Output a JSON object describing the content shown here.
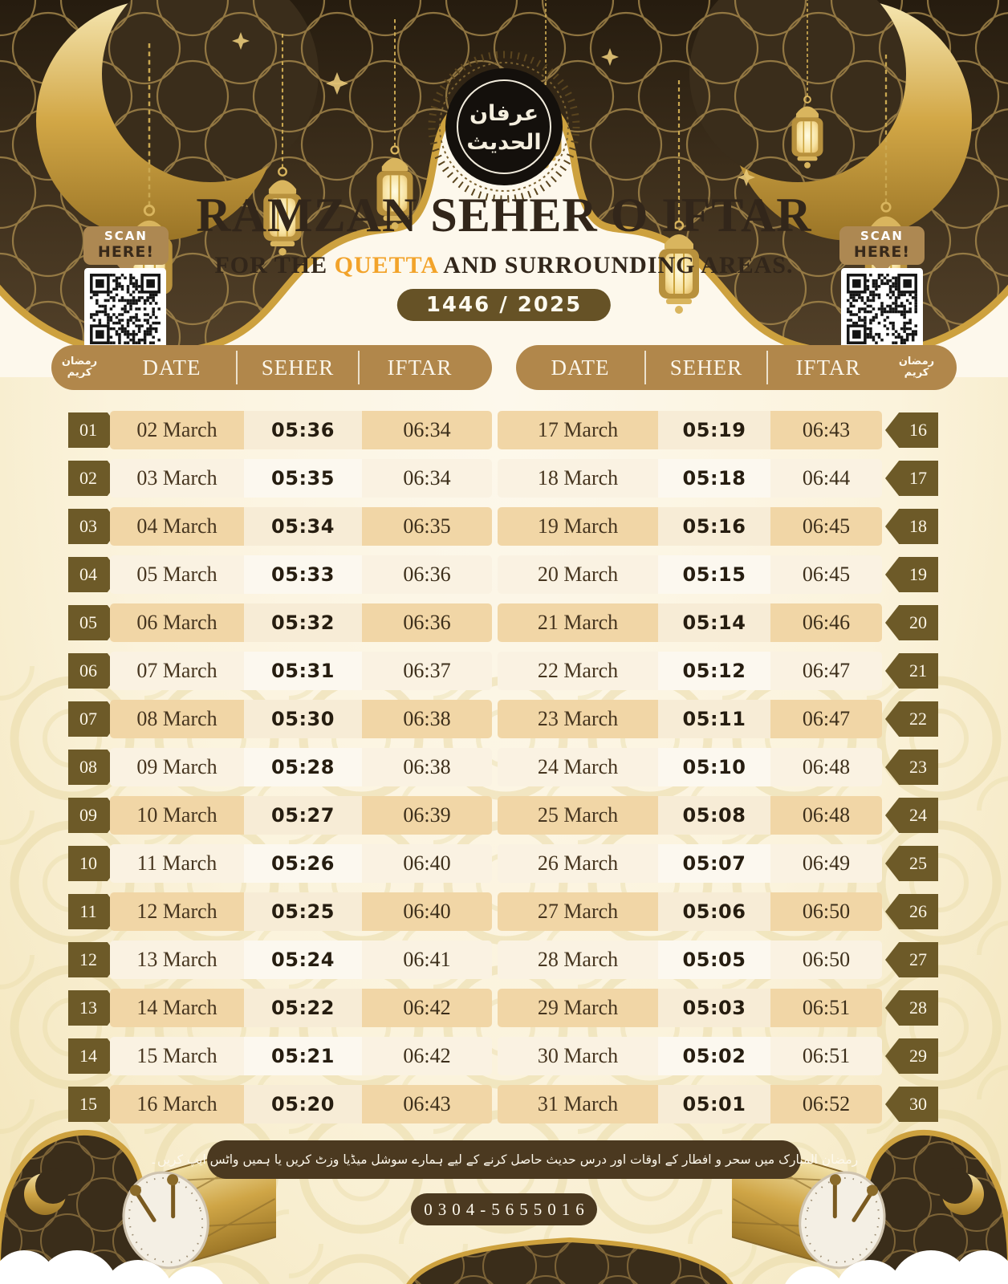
{
  "header": {
    "logo_line1": "عرفان",
    "logo_line2": "الحديث",
    "title": "RAMZAN SEHER O IFTAR",
    "subtitle_prefix": "FOR THE ",
    "subtitle_highlight": "QUETTA",
    "subtitle_suffix": " AND SURROUNDING AREAS.",
    "year_badge": "1446 / 2025",
    "scan": {
      "word1": "SCAN",
      "word2": "HERE!"
    }
  },
  "table_headers": {
    "date": "DATE",
    "seher": "SEHER",
    "iftar": "IFTAR",
    "roundel_line1": "رمضان",
    "roundel_line2": "كريم"
  },
  "tables": {
    "left": {
      "rows": [
        {
          "no": "01",
          "date": "02 March",
          "seher": "05:36",
          "iftar": "06:34"
        },
        {
          "no": "02",
          "date": "03 March",
          "seher": "05:35",
          "iftar": "06:34"
        },
        {
          "no": "03",
          "date": "04 March",
          "seher": "05:34",
          "iftar": "06:35"
        },
        {
          "no": "04",
          "date": "05 March",
          "seher": "05:33",
          "iftar": "06:36"
        },
        {
          "no": "05",
          "date": "06 March",
          "seher": "05:32",
          "iftar": "06:36"
        },
        {
          "no": "06",
          "date": "07 March",
          "seher": "05:31",
          "iftar": "06:37"
        },
        {
          "no": "07",
          "date": "08 March",
          "seher": "05:30",
          "iftar": "06:38"
        },
        {
          "no": "08",
          "date": "09 March",
          "seher": "05:28",
          "iftar": "06:38"
        },
        {
          "no": "09",
          "date": "10 March",
          "seher": "05:27",
          "iftar": "06:39"
        },
        {
          "no": "10",
          "date": "11 March",
          "seher": "05:26",
          "iftar": "06:40"
        },
        {
          "no": "11",
          "date": "12 March",
          "seher": "05:25",
          "iftar": "06:40"
        },
        {
          "no": "12",
          "date": "13 March",
          "seher": "05:24",
          "iftar": "06:41"
        },
        {
          "no": "13",
          "date": "14 March",
          "seher": "05:22",
          "iftar": "06:42"
        },
        {
          "no": "14",
          "date": "15 March",
          "seher": "05:21",
          "iftar": "06:42"
        },
        {
          "no": "15",
          "date": "16 March",
          "seher": "05:20",
          "iftar": "06:43"
        }
      ]
    },
    "right": {
      "rows": [
        {
          "no": "16",
          "date": "17 March",
          "seher": "05:19",
          "iftar": "06:43"
        },
        {
          "no": "17",
          "date": "18 March",
          "seher": "05:18",
          "iftar": "06:44"
        },
        {
          "no": "18",
          "date": "19 March",
          "seher": "05:16",
          "iftar": "06:45"
        },
        {
          "no": "19",
          "date": "20 March",
          "seher": "05:15",
          "iftar": "06:45"
        },
        {
          "no": "20",
          "date": "21 March",
          "seher": "05:14",
          "iftar": "06:46"
        },
        {
          "no": "21",
          "date": "22 March",
          "seher": "05:12",
          "iftar": "06:47"
        },
        {
          "no": "22",
          "date": "23 March",
          "seher": "05:11",
          "iftar": "06:47"
        },
        {
          "no": "23",
          "date": "24 March",
          "seher": "05:10",
          "iftar": "06:48"
        },
        {
          "no": "24",
          "date": "25 March",
          "seher": "05:08",
          "iftar": "06:48"
        },
        {
          "no": "25",
          "date": "26 March",
          "seher": "05:07",
          "iftar": "06:49"
        },
        {
          "no": "26",
          "date": "27 March",
          "seher": "05:06",
          "iftar": "06:50"
        },
        {
          "no": "27",
          "date": "28 March",
          "seher": "05:05",
          "iftar": "06:50"
        },
        {
          "no": "28",
          "date": "29 March",
          "seher": "05:03",
          "iftar": "06:51"
        },
        {
          "no": "29",
          "date": "30 March",
          "seher": "05:02",
          "iftar": "06:51"
        },
        {
          "no": "30",
          "date": "31 March",
          "seher": "05:01",
          "iftar": "06:52"
        }
      ]
    }
  },
  "footer": {
    "urdu_note": "رمضان المبارک میں سحر و افطار کے اوقات اور درس حدیث حاصل کرنے کے لیے ہمارے سوشل میڈیا وزٹ کریں یا ہمیں واٹس ایپ کریں۔",
    "phone": "0304-5655016"
  },
  "colors": {
    "header_brown": "#3f3220",
    "gold": "#cda13e",
    "pill_tan": "#b1874b",
    "badge_olive": "#6d5a28",
    "stripe_tan": "#f1d6a6",
    "cream": "#fdf8ec",
    "dark_pill": "#4b3920",
    "highlight_orange": "#f2a32a"
  }
}
